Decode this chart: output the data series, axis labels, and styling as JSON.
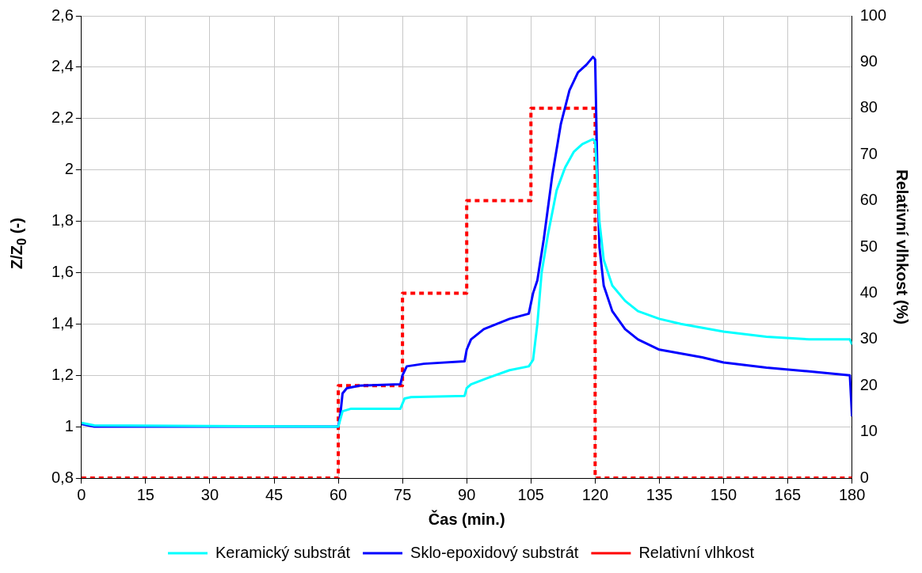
{
  "chart_data": {
    "type": "line",
    "xlabel": "Čas (min.)",
    "ylabel": "Z/Z$_{0}$ (-)",
    "y2label": "Relativní vlhkost (%)",
    "xlim": [
      0,
      180
    ],
    "xticks": [
      0,
      15,
      30,
      45,
      60,
      75,
      90,
      105,
      120,
      135,
      150,
      165,
      180
    ],
    "ylim": [
      0.8,
      2.6
    ],
    "yticks": [
      {
        "value": 0.8,
        "label": "0,8"
      },
      1,
      {
        "value": 1.2,
        "label": "1,2"
      },
      {
        "value": 1.4,
        "label": "1,4"
      },
      {
        "value": 1.6,
        "label": "1,6"
      },
      {
        "value": 1.8,
        "label": "1,8"
      },
      2,
      {
        "value": 2.2,
        "label": "2,2"
      },
      {
        "value": 2.4,
        "label": "2,4"
      },
      {
        "value": 2.6,
        "label": "2,6"
      }
    ],
    "y2lim": [
      0,
      100
    ],
    "y2ticks": [
      0,
      10,
      20,
      30,
      40,
      50,
      60,
      70,
      80,
      90,
      100
    ],
    "grid": true,
    "legend": "bottom",
    "marker": "none",
    "series": [
      {
        "name": "Keramický substrát",
        "color": "#00ffff",
        "line_style": "solid",
        "x": [
          0,
          3,
          60,
          61,
          63,
          74.5,
          75.5,
          77,
          89.5,
          90,
          91,
          95,
          100,
          104.5,
          105.5,
          106.5,
          107.5,
          109,
          111,
          113,
          115,
          117,
          119.5,
          120,
          121,
          122,
          124,
          127,
          130,
          135,
          140,
          150,
          160,
          170,
          179.5,
          180
        ],
        "values": [
          1.015,
          1.005,
          1.0,
          1.06,
          1.07,
          1.07,
          1.11,
          1.115,
          1.12,
          1.15,
          1.165,
          1.19,
          1.22,
          1.235,
          1.26,
          1.4,
          1.6,
          1.75,
          1.92,
          2.01,
          2.07,
          2.1,
          2.12,
          2.11,
          1.8,
          1.65,
          1.55,
          1.49,
          1.45,
          1.42,
          1.4,
          1.37,
          1.35,
          1.34,
          1.34,
          1.32
        ]
      },
      {
        "name": "Sklo-epoxidový substrát",
        "color": "#0000ff",
        "line_style": "solid",
        "x": [
          0,
          3,
          60,
          60.5,
          61,
          62,
          65,
          74.5,
          75,
          76,
          80,
          89.5,
          90,
          91,
          94,
          100,
          104.5,
          105.5,
          106.5,
          108,
          110,
          112,
          114,
          116,
          118,
          119.5,
          120,
          120.5,
          121,
          122,
          124,
          127,
          130,
          135,
          145,
          150,
          160,
          170,
          179.5,
          180
        ],
        "values": [
          1.01,
          1.0,
          1.0,
          1.05,
          1.13,
          1.15,
          1.16,
          1.165,
          1.2,
          1.235,
          1.245,
          1.255,
          1.3,
          1.34,
          1.38,
          1.42,
          1.44,
          1.52,
          1.57,
          1.73,
          1.98,
          2.18,
          2.31,
          2.38,
          2.41,
          2.44,
          2.43,
          2.0,
          1.7,
          1.55,
          1.45,
          1.38,
          1.34,
          1.3,
          1.27,
          1.25,
          1.23,
          1.215,
          1.2,
          1.04
        ]
      },
      {
        "name": "Relativní vlhkost",
        "color": "#ff0000",
        "line_style": "dashed",
        "axis": "y2",
        "x": [
          0,
          60,
          60,
          75,
          75,
          90,
          90,
          105,
          105,
          120,
          120,
          180
        ],
        "values": [
          0,
          0,
          20,
          20,
          40,
          40,
          60,
          60,
          80,
          80,
          0,
          0
        ]
      }
    ]
  }
}
